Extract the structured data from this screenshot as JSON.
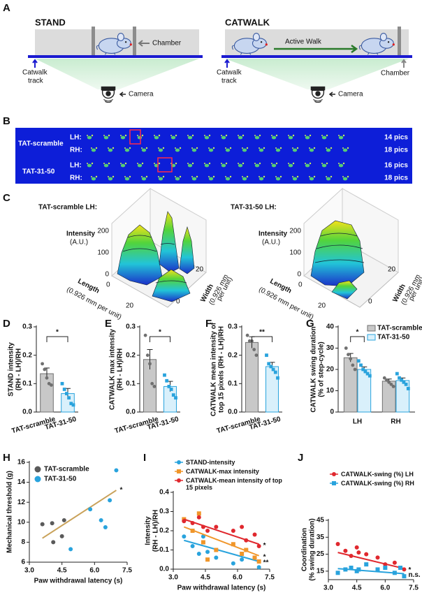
{
  "panel_labels": [
    "A",
    "B",
    "C",
    "D",
    "E",
    "F",
    "G",
    "H",
    "I",
    "J"
  ],
  "diagram_a": {
    "stand": {
      "title": "STAND",
      "chamber": "Chamber",
      "track": [
        "Catwalk",
        "track"
      ],
      "camera": "Camera"
    },
    "catwalk": {
      "title": "CATWALK",
      "walk": "Active Walk",
      "track": [
        "Catwalk",
        "track"
      ],
      "chamber": "Chamber",
      "camera": "Camera"
    }
  },
  "panel_b": {
    "groups": [
      {
        "name": "TAT-scramble",
        "rows": [
          {
            "paw": "LH:",
            "count": "14 pics"
          },
          {
            "paw": "RH:",
            "count": "18 pics"
          }
        ]
      },
      {
        "name": "TAT-31-50",
        "rows": [
          {
            "paw": "LH:",
            "count": "16 pics"
          },
          {
            "paw": "RH:",
            "count": "18 pics"
          }
        ]
      }
    ]
  },
  "panel_c": {
    "plots": [
      {
        "title": "TAT-scramble  LH:",
        "z_label": [
          "Intensity",
          "(A.U.)"
        ],
        "z_ticks": [
          200,
          100,
          0
        ],
        "length_label": [
          "Length",
          "(0.926 mm per unit)"
        ],
        "length_ticks": [
          0,
          20
        ],
        "width_label": [
          "Width",
          "(0.926 mm",
          "per unit)"
        ],
        "width_ticks": [
          0,
          20
        ]
      },
      {
        "title": "TAT-31-50  LH:",
        "z_label": [
          "Intensity",
          "(A.U.)"
        ],
        "z_ticks": [
          200,
          100,
          0
        ],
        "length_label": [
          "Length",
          "(0.926 mm per unit)"
        ],
        "length_ticks": [
          0,
          20
        ],
        "width_label": [
          "Width",
          "(0.926 mm",
          "per unit)"
        ],
        "width_ticks": [
          0,
          20
        ]
      }
    ]
  },
  "chart_data": [
    {
      "type": "bar",
      "ylabel": [
        "STAND intensity",
        "(RH - LH)/RH"
      ],
      "categories": [
        "TAT-scramble",
        "TAT-31-50"
      ],
      "values": [
        0.135,
        0.065
      ],
      "errors": [
        0.02,
        0.018
      ],
      "points": [
        [
          0.17,
          0.15,
          0.12,
          0.1,
          0.095
        ],
        [
          0.1,
          0.08,
          0.065,
          0.05,
          0.03,
          0.025
        ]
      ],
      "colors": [
        "#c8c8c8",
        "#d9f0fb"
      ],
      "point_colors": [
        "#707070",
        "#29a3dd"
      ],
      "point_markers": [
        "circle",
        "square"
      ],
      "ylim": [
        0,
        0.3
      ],
      "yticks": [
        {
          "value": 0,
          "label": "0.0"
        },
        0.1,
        0.2,
        0.3
      ],
      "significance": "*"
    },
    {
      "type": "bar",
      "ylabel": [
        "CATWALK max intensity",
        "(RH - LH)/RH"
      ],
      "categories": [
        "TAT-scramble",
        "TAT-31-50"
      ],
      "values": [
        0.185,
        0.09
      ],
      "errors": [
        0.035,
        0.018
      ],
      "points": [
        [
          0.27,
          0.2,
          0.17,
          0.1,
          0.09
        ],
        [
          0.13,
          0.11,
          0.09,
          0.08,
          0.06,
          0.05
        ]
      ],
      "colors": [
        "#c8c8c8",
        "#d9f0fb"
      ],
      "point_colors": [
        "#707070",
        "#29a3dd"
      ],
      "point_markers": [
        "circle",
        "square"
      ],
      "ylim": [
        0,
        0.3
      ],
      "yticks": [
        {
          "value": 0,
          "label": "0.0"
        },
        0.1,
        0.2,
        0.3
      ],
      "significance": "*"
    },
    {
      "type": "bar",
      "ylabel": [
        "CATWALK mean intensity of",
        "top 15 pixels (RH - LH)/RH"
      ],
      "categories": [
        "TAT-scramble",
        "TAT-31-50"
      ],
      "values": [
        0.245,
        0.16
      ],
      "errors": [
        0.02,
        0.015
      ],
      "points": [
        [
          0.27,
          0.25,
          0.25,
          0.22,
          0.2
        ],
        [
          0.2,
          0.17,
          0.16,
          0.15,
          0.14,
          0.12
        ]
      ],
      "colors": [
        "#c8c8c8",
        "#d9f0fb"
      ],
      "point_colors": [
        "#707070",
        "#29a3dd"
      ],
      "point_markers": [
        "circle",
        "square"
      ],
      "ylim": [
        0,
        0.3
      ],
      "yticks": [
        {
          "value": 0,
          "label": "0.0"
        },
        0.1,
        0.2,
        0.3
      ],
      "significance": "**"
    },
    {
      "type": "grouped_bar",
      "ylabel": [
        "CATWALK swing duration",
        "(% of step-cycle)"
      ],
      "categories": [
        "LH",
        "RH"
      ],
      "series": [
        {
          "name": "TAT-scramble",
          "color": "#c8c8c8",
          "point_color": "#707070",
          "marker": "circle",
          "values": [
            25.5,
            14.5
          ],
          "errors": [
            2,
            1
          ],
          "points": [
            [
              30,
              27,
              25,
              22,
              20
            ],
            [
              16,
              15,
              14,
              13,
              12
            ]
          ]
        },
        {
          "name": "TAT-31-50",
          "color": "#d9f0fb",
          "point_color": "#29a3dd",
          "marker": "square",
          "values": [
            20,
            14.8
          ],
          "errors": [
            1.2,
            1.2
          ],
          "points": [
            [
              24,
              22,
              20,
              19,
              18,
              17
            ],
            [
              18,
              16,
              15,
              14,
              13,
              11
            ]
          ]
        }
      ],
      "ylim": [
        0,
        40
      ],
      "yticks": [
        0,
        10,
        20,
        30,
        40
      ],
      "significance": "*"
    },
    {
      "type": "scatter",
      "xlabel": "Paw withdrawal latency (s)",
      "ylabel": [
        "Mechanical threshold (g)"
      ],
      "xlim": [
        3,
        7.5
      ],
      "xticks": [
        {
          "value": 3,
          "label": "3.0"
        },
        4.5,
        {
          "value": 6,
          "label": "6.0"
        },
        7.5
      ],
      "ylim": [
        6,
        16
      ],
      "yticks": [
        6,
        8,
        10,
        12,
        14,
        16
      ],
      "series": [
        {
          "name": "TAT-scramble",
          "color": "#5a5a5a",
          "marker": "circle",
          "x": [
            3.6,
            4.05,
            4.1,
            4.5,
            4.6
          ],
          "y": [
            9.8,
            9.9,
            8.0,
            8.6,
            10.2
          ]
        },
        {
          "name": "TAT-31-50",
          "color": "#29a3dd",
          "marker": "circle",
          "x": [
            4.9,
            5.8,
            6.3,
            6.5,
            6.7,
            7.0
          ],
          "y": [
            7.3,
            11.3,
            10.2,
            9.5,
            12.2,
            15.2
          ]
        }
      ],
      "fit": {
        "x": [
          3.6,
          7.0
        ],
        "y": [
          8.4,
          13.2
        ],
        "color": "#c9a25a",
        "significance": "*"
      }
    },
    {
      "type": "scatter",
      "xlabel": "Paw withdrawal latency (s)",
      "ylabel": [
        "Intensity",
        "(RH - LH)/RH"
      ],
      "xlim": [
        3,
        7.5
      ],
      "xticks": [
        {
          "value": 3,
          "label": "3.0"
        },
        4.5,
        {
          "value": 6,
          "label": "6.0"
        },
        7.5
      ],
      "ylim": [
        0,
        0.4
      ],
      "yticks": [
        {
          "value": 0,
          "label": "0.0"
        },
        0.1,
        0.2,
        0.3,
        0.4
      ],
      "series": [
        {
          "name": "STAND-intensity",
          "color": "#29a3dd",
          "marker": "circle",
          "x": [
            3.5,
            3.9,
            4.2,
            4.4,
            4.6,
            5.0,
            5.8,
            6.2,
            6.4,
            6.8,
            7.0
          ],
          "y": [
            0.17,
            0.12,
            0.08,
            0.17,
            0.09,
            0.06,
            0.03,
            0.05,
            0.1,
            0.06,
            0.01
          ],
          "fit": {
            "x": [
              3.5,
              7.0
            ],
            "y": [
              0.15,
              0.04
            ]
          },
          "significance": "**"
        },
        {
          "name": "CATWALK-max intensity",
          "color": "#f0962a",
          "marker": "square",
          "x": [
            3.5,
            3.9,
            4.2,
            4.4,
            4.6,
            5.0,
            5.8,
            6.2,
            6.4,
            6.8,
            7.0
          ],
          "y": [
            0.26,
            0.2,
            0.29,
            0.14,
            0.05,
            0.1,
            0.13,
            0.08,
            0.1,
            0.06,
            0.04
          ],
          "fit": {
            "x": [
              3.5,
              7.0
            ],
            "y": [
              0.22,
              0.07
            ]
          },
          "significance": "*"
        },
        {
          "name": "CATWALK-mean intensity of top 15 pixels",
          "color": "#e0282e",
          "marker": "circle",
          "x": [
            3.5,
            3.9,
            4.2,
            4.4,
            4.6,
            5.0,
            5.8,
            6.2,
            6.4,
            6.8,
            7.0
          ],
          "y": [
            0.25,
            0.24,
            0.27,
            0.22,
            0.2,
            0.22,
            0.2,
            0.22,
            0.15,
            0.18,
            0.12
          ],
          "fit": {
            "x": [
              3.5,
              7.0
            ],
            "y": [
              0.26,
              0.13
            ]
          },
          "significance": "*"
        }
      ]
    },
    {
      "type": "scatter",
      "xlabel": "Paw withdrawal latency (s)",
      "ylabel": [
        "Coordination",
        "(% swing duration)"
      ],
      "xlim": [
        3,
        7.5
      ],
      "xticks": [
        {
          "value": 3,
          "label": "3.0"
        },
        4.5,
        {
          "value": 6,
          "label": "6.0"
        },
        7.5
      ],
      "ylim": [
        10,
        45
      ],
      "yticks": [
        15,
        25,
        35,
        45
      ],
      "series": [
        {
          "name": "CATWALK-swing (%) LH",
          "color": "#e0282e",
          "marker": "circle",
          "x": [
            3.5,
            3.9,
            4.2,
            4.5,
            4.6,
            5.0,
            5.6,
            6.0,
            6.5,
            6.8,
            7.0
          ],
          "y": [
            31,
            27,
            24,
            29,
            26,
            25,
            23,
            19,
            20,
            17,
            16
          ],
          "fit": {
            "x": [
              3.5,
              7.0
            ],
            "y": [
              26,
              16.5
            ]
          },
          "significance": "*"
        },
        {
          "name": "CATWALK-swing (%) RH",
          "color": "#29a3dd",
          "marker": "square",
          "x": [
            3.5,
            3.9,
            4.2,
            4.5,
            4.6,
            5.0,
            5.6,
            6.0,
            6.5,
            6.8,
            7.0
          ],
          "y": [
            14,
            16,
            17,
            15,
            16,
            19,
            16,
            17,
            14,
            17,
            12
          ],
          "fit": {
            "x": [
              3.5,
              7.0
            ],
            "y": [
              16.5,
              13.5
            ]
          },
          "significance": "n.s."
        }
      ]
    }
  ]
}
